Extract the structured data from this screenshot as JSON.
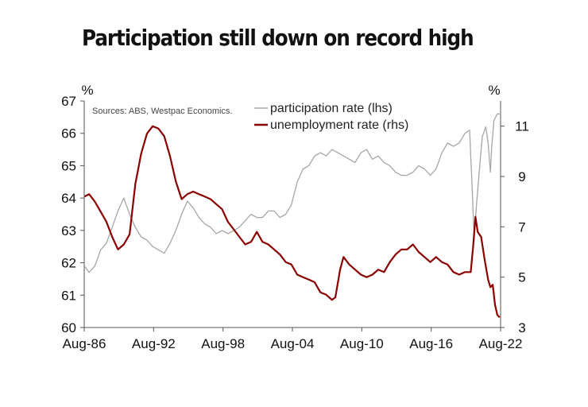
{
  "title": "Participation still down on record high",
  "chart_data": {
    "type": "line",
    "source": "Sources: ABS, Westpac Economics.",
    "left_unit": "%",
    "right_unit": "%",
    "x_ticks": [
      "Aug-86",
      "Aug-92",
      "Aug-98",
      "Aug-04",
      "Aug-10",
      "Aug-16",
      "Aug-22"
    ],
    "x_range": [
      1986.58,
      2022.58
    ],
    "y_left_range": [
      60,
      67
    ],
    "y_left_ticks": [
      60,
      61,
      62,
      63,
      64,
      65,
      66,
      67
    ],
    "y_right_range": [
      3,
      12
    ],
    "y_right_ticks": [
      3,
      5,
      7,
      9,
      11
    ],
    "grid": false,
    "legend_position": "top",
    "series": [
      {
        "name": "participation rate (lhs)",
        "axis": "left",
        "color": "#a6a6a6",
        "x": [
          1986.6,
          1987.0,
          1987.5,
          1988.0,
          1988.5,
          1989.0,
          1989.5,
          1990.0,
          1990.5,
          1991.0,
          1991.5,
          1992.0,
          1992.5,
          1993.0,
          1993.5,
          1994.0,
          1994.5,
          1995.0,
          1995.5,
          1996.0,
          1996.5,
          1997.0,
          1997.5,
          1998.0,
          1998.5,
          1999.0,
          1999.5,
          2000.0,
          2000.5,
          2001.0,
          2001.5,
          2002.0,
          2002.5,
          2003.0,
          2003.5,
          2004.0,
          2004.5,
          2005.0,
          2005.5,
          2006.0,
          2006.5,
          2007.0,
          2007.5,
          2008.0,
          2008.5,
          2009.0,
          2009.5,
          2010.0,
          2010.5,
          2011.0,
          2011.5,
          2012.0,
          2012.5,
          2013.0,
          2013.5,
          2014.0,
          2014.5,
          2015.0,
          2015.5,
          2016.0,
          2016.5,
          2017.0,
          2017.5,
          2018.0,
          2018.5,
          2019.0,
          2019.5,
          2019.9,
          2020.1,
          2020.3,
          2020.5,
          2020.8,
          2021.0,
          2021.3,
          2021.5,
          2021.7,
          2021.8,
          2022.0,
          2022.3,
          2022.6
        ],
        "y": [
          61.9,
          61.7,
          61.9,
          62.4,
          62.6,
          63.1,
          63.6,
          64.0,
          63.5,
          63.1,
          62.8,
          62.7,
          62.5,
          62.4,
          62.3,
          62.6,
          63.0,
          63.5,
          63.9,
          63.7,
          63.4,
          63.2,
          63.1,
          62.9,
          63.0,
          62.9,
          63.0,
          63.1,
          63.3,
          63.5,
          63.4,
          63.4,
          63.6,
          63.6,
          63.4,
          63.5,
          63.8,
          64.5,
          64.9,
          65.0,
          65.3,
          65.4,
          65.3,
          65.5,
          65.4,
          65.3,
          65.2,
          65.1,
          65.4,
          65.5,
          65.2,
          65.3,
          65.1,
          65.0,
          64.8,
          64.7,
          64.7,
          64.8,
          65.0,
          64.9,
          64.7,
          64.9,
          65.4,
          65.7,
          65.6,
          65.7,
          66.0,
          66.1,
          64.5,
          62.7,
          63.8,
          65.1,
          65.9,
          66.2,
          65.7,
          64.8,
          65.5,
          66.4,
          66.6,
          66.6
        ]
      },
      {
        "name": "unemployment rate (rhs)",
        "axis": "right",
        "color": "#8b0000",
        "x": [
          1986.6,
          1987.0,
          1987.5,
          1988.0,
          1988.5,
          1989.0,
          1989.5,
          1990.0,
          1990.5,
          1991.0,
          1991.5,
          1992.0,
          1992.5,
          1993.0,
          1993.5,
          1994.0,
          1994.5,
          1995.0,
          1995.5,
          1996.0,
          1996.5,
          1997.0,
          1997.5,
          1998.0,
          1998.5,
          1999.0,
          1999.5,
          2000.0,
          2000.5,
          2001.0,
          2001.5,
          2002.0,
          2002.5,
          2003.0,
          2003.5,
          2004.0,
          2004.5,
          2005.0,
          2005.5,
          2006.0,
          2006.5,
          2007.0,
          2007.5,
          2008.0,
          2008.3,
          2008.7,
          2009.0,
          2009.5,
          2010.0,
          2010.5,
          2011.0,
          2011.5,
          2012.0,
          2012.5,
          2013.0,
          2013.5,
          2014.0,
          2014.5,
          2015.0,
          2015.5,
          2016.0,
          2016.5,
          2017.0,
          2017.5,
          2018.0,
          2018.5,
          2019.0,
          2019.5,
          2020.0,
          2020.2,
          2020.4,
          2020.6,
          2020.9,
          2021.2,
          2021.5,
          2021.7,
          2021.9,
          2022.1,
          2022.3,
          2022.5
        ],
        "y": [
          8.2,
          8.3,
          8.0,
          7.6,
          7.2,
          6.6,
          6.1,
          6.3,
          6.7,
          8.7,
          9.9,
          10.7,
          11.0,
          10.9,
          10.6,
          9.8,
          8.8,
          8.1,
          8.3,
          8.4,
          8.3,
          8.2,
          8.1,
          7.9,
          7.7,
          7.2,
          6.9,
          6.6,
          6.3,
          6.4,
          6.8,
          6.4,
          6.3,
          6.1,
          5.9,
          5.6,
          5.5,
          5.1,
          5.0,
          4.9,
          4.8,
          4.4,
          4.3,
          4.1,
          4.2,
          5.3,
          5.8,
          5.5,
          5.3,
          5.1,
          5.0,
          5.1,
          5.3,
          5.2,
          5.6,
          5.9,
          6.1,
          6.1,
          6.3,
          6.0,
          5.8,
          5.6,
          5.8,
          5.6,
          5.5,
          5.2,
          5.1,
          5.2,
          5.2,
          6.2,
          7.4,
          6.8,
          6.6,
          5.7,
          4.9,
          4.6,
          4.7,
          3.9,
          3.5,
          3.4
        ]
      }
    ]
  }
}
